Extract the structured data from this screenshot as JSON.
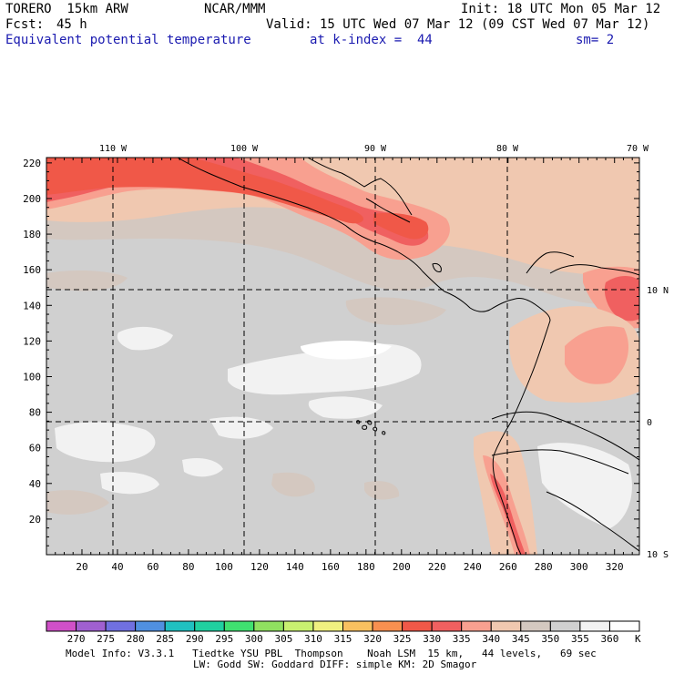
{
  "header": {
    "model": "TORERO  15km ARW",
    "org": "NCAR/MMM",
    "init": "Init: 18 UTC Mon 05 Mar 12",
    "fcst_label": "Fcst:",
    "fcst_value": "45 h",
    "valid": "Valid: 15 UTC Wed 07 Mar 12 (09 CST Wed 07 Mar 12)",
    "field": "Equivalent potential temperature",
    "level": "at k-index =  44",
    "smooth": "sm= 2"
  },
  "map": {
    "top_longitudes": [
      "110 W",
      "100 W",
      "90 W",
      "80 W",
      "70 W"
    ],
    "right_latitudes": [
      "10 N",
      "0",
      "10 S"
    ],
    "x_ticks": [
      "20",
      "40",
      "60",
      "80",
      "100",
      "120",
      "140",
      "160",
      "180",
      "200",
      "220",
      "240",
      "260",
      "280",
      "300",
      "320"
    ],
    "y_ticks": [
      "220",
      "200",
      "180",
      "160",
      "140",
      "120",
      "100",
      "80",
      "60",
      "40",
      "20"
    ],
    "x_range": [
      0,
      334
    ],
    "y_range": [
      0,
      223
    ]
  },
  "colorbar": {
    "levels": [
      "270",
      "275",
      "280",
      "285",
      "290",
      "295",
      "300",
      "305",
      "310",
      "315",
      "320",
      "325",
      "330",
      "335",
      "340",
      "345",
      "350",
      "355",
      "360"
    ],
    "unit": "K",
    "colors": [
      "#d050c8",
      "#a060d0",
      "#7070e0",
      "#5090e0",
      "#20c0c0",
      "#20d0a0",
      "#40e070",
      "#90e060",
      "#c8f070",
      "#f0f080",
      "#f8c060",
      "#f89050",
      "#f05848",
      "#f06060",
      "#f8a090",
      "#f0c8b0",
      "#d4c8c0",
      "#d0d0d0",
      "#f2f2f2",
      "#ffffff"
    ]
  },
  "footer": {
    "line1": "Model Info: V3.3.1   Tiedtke YSU PBL  Thompson    Noah LSM  15 km,   44 levels,   69 sec",
    "line2": "LW: Godd SW: Goddard DIFF: simple KM: 2D Smagor"
  }
}
